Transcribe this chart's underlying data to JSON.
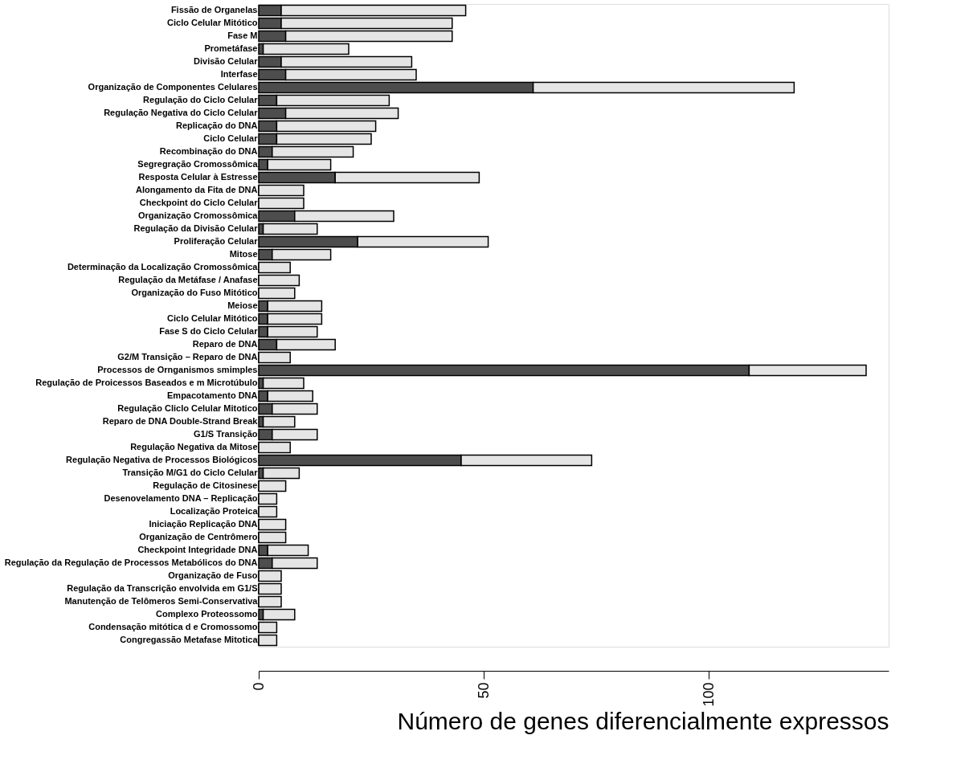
{
  "chart_data": {
    "type": "bar",
    "orientation": "horizontal",
    "stacked": true,
    "xlabel": "Número de genes diferencialmente expressos",
    "categories": [
      "Fissão de Organelas",
      "Ciclo Celular Mitótico",
      "Fase M",
      "Prometáfase",
      "Divisão Celular",
      "Interfase",
      "Organização de Componentes Celulares",
      "Regulação do Ciclo Celular",
      "Regulação Negativa do Ciclo Celular",
      "Replicação do DNA",
      "Ciclo Celular",
      "Recombinação do DNA",
      "Segregração Cromossômica",
      "Resposta Celular à Estresse",
      "Alongamento da Fita de DNA",
      "Checkpoint do Ciclo Celular",
      "Organização Cromossômica",
      "Regulação da Divisão Celular",
      "Proliferação Celular",
      "Mitose",
      "Determinação da Localização Cromossômica",
      "Regulação da Metáfase / Anafase",
      "Organização do Fuso Mitótico",
      "Meiose",
      "Ciclo Celular Mitótico",
      "Fase S do Ciclo Celular",
      "Reparo de DNA",
      "G2/M Transição – Reparo de DNA",
      "Processos de Ornganismos  smimples",
      "Regulação de Proicessos Baseados e m Microtúbulo",
      "Empacotamento DNA",
      "Regulação Cliclo Celular Mitotico",
      "Reparo de  DNA  Double-Strand Break",
      "G1/S Transição",
      "Regulação Negativa da Mitose",
      "Regulação Negativa de Processos Biológicos",
      "Transição M/G1  do Ciclo Celular",
      "Regulação de Citosinese",
      "Desenovelamento DNA – Replicação",
      "Localização Proteica",
      "Iniciação  Replicação DNA",
      "Organização de Centrômero",
      "Checkpoint Integridade DNA",
      "Regulação da Regulação de Processos Metabólicos do DNA",
      "Organização de Fuso",
      "Regulação da Transcrição envolvida em G1/S",
      "Manutenção de Telômeros Semi-Conservativa",
      "Complexo Proteossomo",
      "Condensação mitótica d e Cromossomo",
      "Congregassão Metafase Mitotica"
    ],
    "series": [
      {
        "color": "#4d4d4d",
        "values": [
          5,
          5,
          6,
          1,
          5,
          6,
          61,
          4,
          6,
          4,
          4,
          3,
          2,
          17,
          0,
          0,
          8,
          1,
          22,
          3,
          0,
          0,
          0,
          2,
          2,
          2,
          4,
          0,
          109,
          1,
          2,
          3,
          1,
          3,
          0,
          45,
          1,
          0,
          0,
          0,
          0,
          0,
          2,
          3,
          0,
          0,
          0,
          1,
          0,
          0
        ]
      },
      {
        "color": "#e5e5e5",
        "values": [
          41,
          38,
          37,
          19,
          29,
          29,
          58,
          25,
          25,
          22,
          21,
          18,
          14,
          32,
          10,
          10,
          22,
          12,
          29,
          13,
          7,
          9,
          8,
          12,
          12,
          11,
          13,
          7,
          26,
          9,
          10,
          10,
          7,
          10,
          7,
          29,
          8,
          6,
          4,
          4,
          6,
          6,
          9,
          10,
          5,
          5,
          5,
          7,
          4,
          4
        ]
      }
    ],
    "xlim": [
      0,
      140
    ],
    "xticks": [
      0,
      50,
      100
    ],
    "grid": false,
    "legend": false
  }
}
